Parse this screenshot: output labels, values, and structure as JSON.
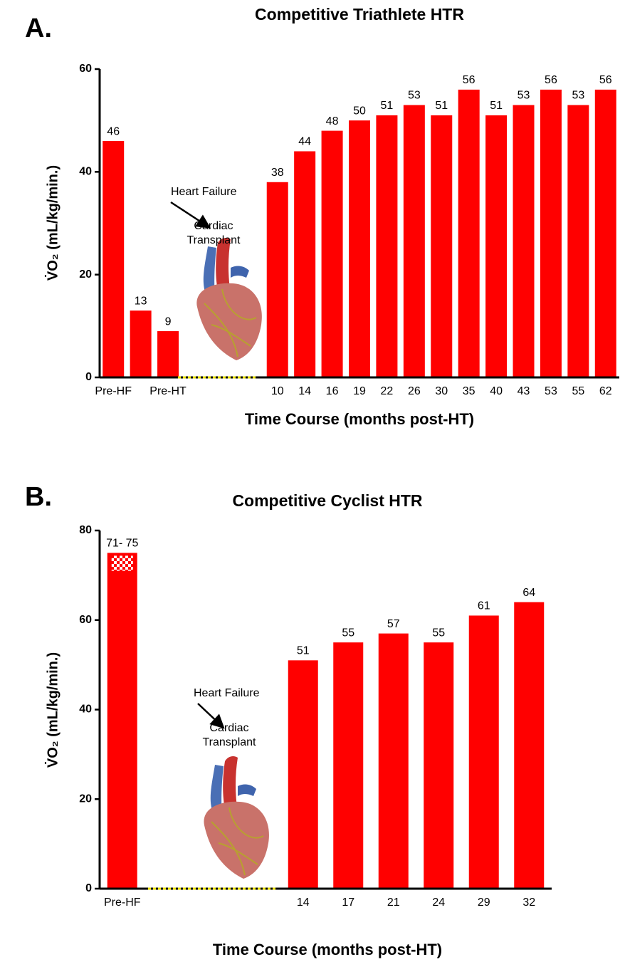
{
  "chart_data": [
    {
      "type": "bar",
      "panel_label": "A.",
      "title": "Competitive Triathlete HTR",
      "x_label": "Time Course (months post-HT)",
      "y_label": "V̇O₂ (mL/kg/min.)",
      "categories": [
        "Pre-HF",
        null,
        "Pre-HT",
        null,
        null,
        null,
        "10",
        "14",
        "16",
        "19",
        "22",
        "26",
        "30",
        "35",
        "40",
        "43",
        "53",
        "55",
        "62"
      ],
      "values": [
        46,
        13,
        9,
        null,
        null,
        null,
        38,
        44,
        48,
        50,
        51,
        53,
        51,
        56,
        51,
        53,
        56,
        53,
        56
      ],
      "color": "#ff0000",
      "ylim": [
        0,
        60
      ],
      "yticks": [
        0,
        20,
        40,
        60
      ],
      "annotations": [
        "Heart Failure",
        "Cardiac",
        "Transplant"
      ]
    },
    {
      "type": "bar",
      "panel_label": "B.",
      "title": "Competitive Cyclist HTR",
      "x_label": "Time Course (months post-HT)",
      "y_label": "V̇O₂ (mL/kg/min.)",
      "categories": [
        "Pre-HF",
        null,
        null,
        null,
        "14",
        "17",
        "21",
        "24",
        "29",
        "32"
      ],
      "values": [
        75,
        null,
        null,
        null,
        51,
        55,
        57,
        55,
        61,
        64
      ],
      "value_labels": [
        "71- 75",
        null,
        null,
        null,
        "51",
        "55",
        "57",
        "55",
        "61",
        "64"
      ],
      "value_ranges": [
        [
          71,
          75
        ],
        null,
        null,
        null,
        null,
        null,
        null,
        null,
        null,
        null
      ],
      "color": "#ff0000",
      "ylim": [
        0,
        80
      ],
      "yticks": [
        0,
        20,
        40,
        60,
        80
      ],
      "annotations": [
        "Heart Failure",
        "Cardiac",
        "Transplant"
      ]
    }
  ]
}
